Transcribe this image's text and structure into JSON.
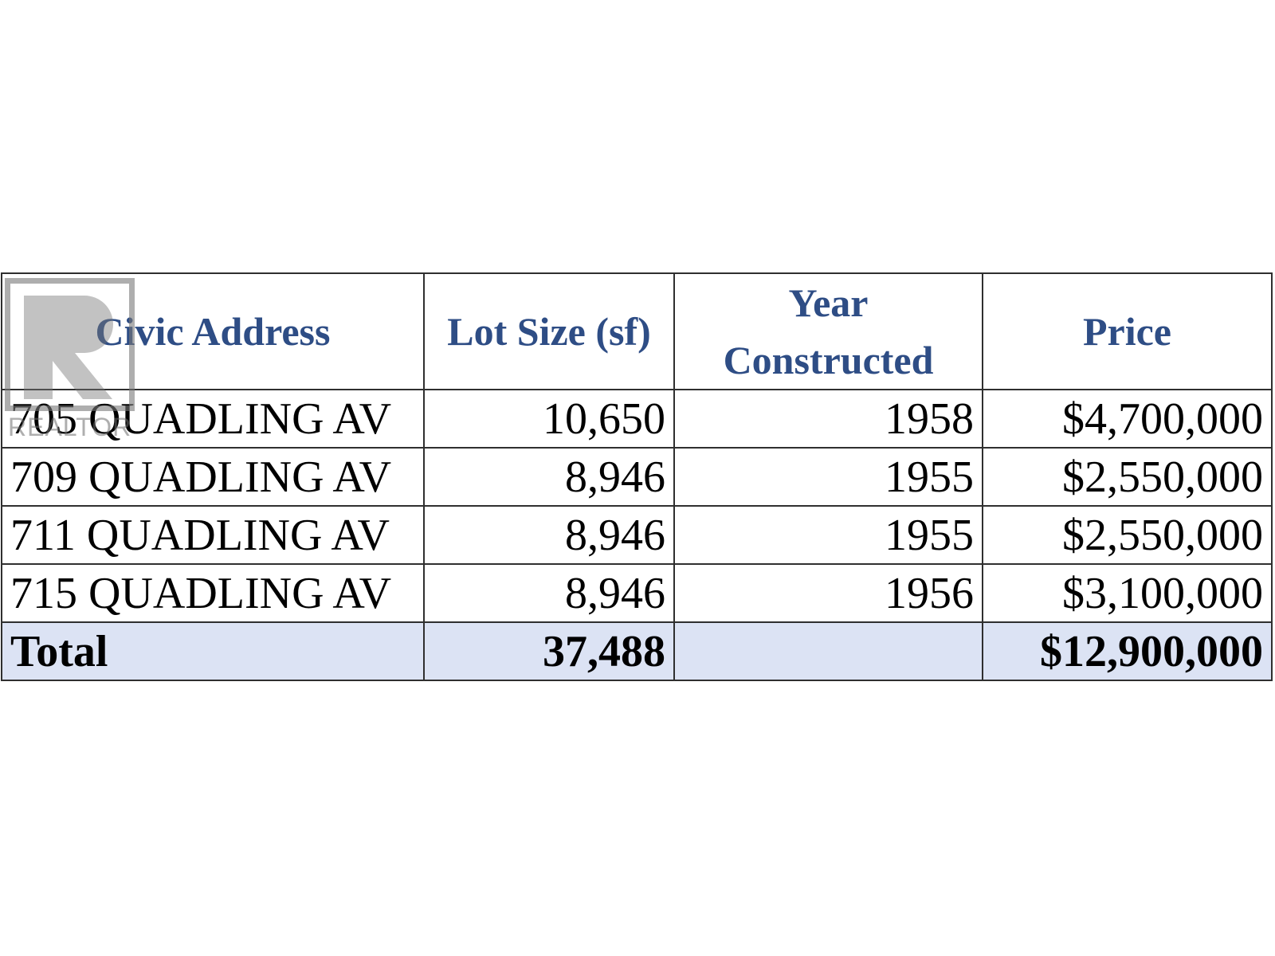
{
  "table": {
    "headers": {
      "address": "Civic Address",
      "lot_size": "Lot Size (sf)",
      "year_line1": "Year",
      "year_line2": "Constructed",
      "price": "Price"
    },
    "rows": [
      {
        "address": "705 QUADLING AV",
        "lot_size": "10,650",
        "year": "1958",
        "price": "$4,700,000"
      },
      {
        "address": "709 QUADLING AV",
        "lot_size": "8,946",
        "year": "1955",
        "price": "$2,550,000"
      },
      {
        "address": "711 QUADLING AV",
        "lot_size": "8,946",
        "year": "1955",
        "price": "$2,550,000"
      },
      {
        "address": "715 QUADLING AV",
        "lot_size": "8,946",
        "year": "1956",
        "price": "$3,100,000"
      }
    ],
    "total": {
      "label": "Total",
      "lot_size": "37,488",
      "year": "",
      "price": "$12,900,000"
    }
  },
  "watermark": {
    "text": "REALTOR",
    "icon": "realtor-logo-icon"
  },
  "colors": {
    "header_text": "#2e4d85",
    "total_row_bg": "#dce3f4",
    "border": "#2f2f2f"
  }
}
